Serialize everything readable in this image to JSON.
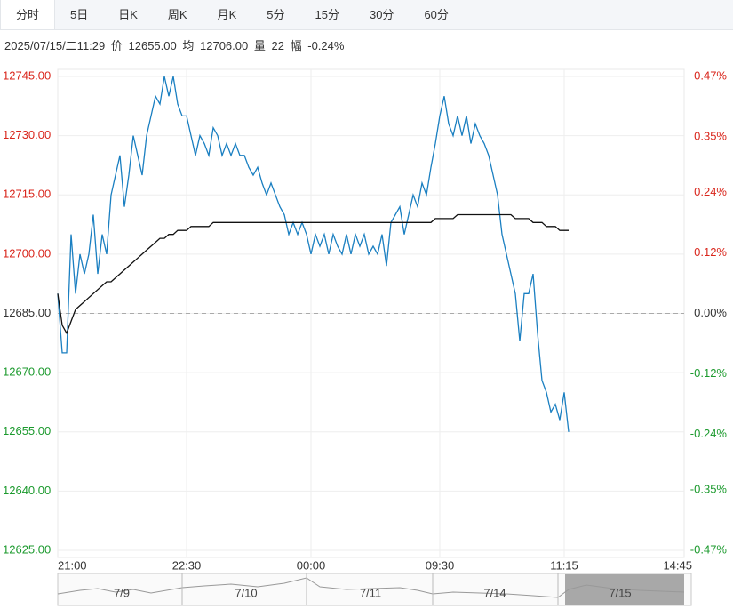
{
  "tabs": [
    "分时",
    "5日",
    "日K",
    "周K",
    "月K",
    "5分",
    "15分",
    "30分",
    "60分"
  ],
  "info": {
    "datetime": "2025/07/15/二11:29",
    "price_label": "价",
    "price": "12655.00",
    "avg_label": "均",
    "avg": "12706.00",
    "vol_label": "量",
    "vol": "22",
    "range_label": "幅",
    "range": "-0.24%"
  },
  "chart_data": {
    "type": "line",
    "xlim": [
      0,
      141
    ],
    "xticks": [
      {
        "value": 0,
        "label": "21:00"
      },
      {
        "value": 29,
        "label": "22:30"
      },
      {
        "value": 57,
        "label": "00:00"
      },
      {
        "value": 86,
        "label": "09:30"
      },
      {
        "value": 114,
        "label": "11:15"
      },
      {
        "value": 141,
        "label": "14:45"
      }
    ],
    "ylim": [
      12625,
      12745
    ],
    "yticks": [
      {
        "value": 12745,
        "label": "12745.00"
      },
      {
        "value": 12730,
        "label": "12730.00"
      },
      {
        "value": 12715,
        "label": "12715.00"
      },
      {
        "value": 12700,
        "label": "12700.00"
      },
      {
        "value": 12685,
        "label": "12685.00"
      },
      {
        "value": 12670,
        "label": "12670.00"
      },
      {
        "value": 12655,
        "label": "12655.00"
      },
      {
        "value": 12640,
        "label": "12640.00"
      },
      {
        "value": 12625,
        "label": "12625.00"
      }
    ],
    "y2lim": [
      -0.47,
      0.47
    ],
    "y2ticks": [
      {
        "value": 0.47,
        "label": "0.47%"
      },
      {
        "value": 0.35,
        "label": "0.35%"
      },
      {
        "value": 0.24,
        "label": "0.24%"
      },
      {
        "value": 0.12,
        "label": "0.12%"
      },
      {
        "value": 0,
        "label": "0.00%"
      },
      {
        "value": -0.12,
        "label": "-0.12%"
      },
      {
        "value": -0.24,
        "label": "-0.24%"
      },
      {
        "value": -0.35,
        "label": "-0.35%"
      },
      {
        "value": -0.47,
        "label": "-0.47%"
      }
    ],
    "reference": 12685,
    "grid": true,
    "series": [
      {
        "color": "#1a7fc1",
        "values": [
          12690,
          12675,
          12675,
          12705,
          12690,
          12700,
          12695,
          12700,
          12710,
          12695,
          12705,
          12700,
          12715,
          12720,
          12725,
          12712,
          12720,
          12730,
          12725,
          12720,
          12730,
          12735,
          12740,
          12738,
          12745,
          12740,
          12745,
          12738,
          12735,
          12735,
          12730,
          12725,
          12730,
          12728,
          12725,
          12732,
          12730,
          12725,
          12728,
          12725,
          12728,
          12725,
          12725,
          12722,
          12720,
          12722,
          12718,
          12715,
          12718,
          12715,
          12712,
          12710,
          12705,
          12708,
          12705,
          12708,
          12705,
          12700,
          12705,
          12702,
          12705,
          12700,
          12705,
          12702,
          12700,
          12705,
          12700,
          12705,
          12702,
          12705,
          12700,
          12702,
          12700,
          12705,
          12697,
          12708,
          12710,
          12712,
          12705,
          12710,
          12715,
          12712,
          12718,
          12715,
          12722,
          12728,
          12735,
          12740,
          12733,
          12730,
          12735,
          12730,
          12735,
          12728,
          12733,
          12730,
          12728,
          12725,
          12720,
          12715,
          12705,
          12700,
          12695,
          12690,
          12678,
          12690,
          12690,
          12695,
          12680,
          12668,
          12665,
          12660,
          12662,
          12658,
          12665,
          12655
        ]
      },
      {
        "color": "#111111",
        "values": [
          12690,
          12682,
          12680,
          12683,
          12686,
          12687,
          12688,
          12689,
          12690,
          12691,
          12692,
          12693,
          12693,
          12694,
          12695,
          12696,
          12697,
          12698,
          12699,
          12700,
          12701,
          12702,
          12703,
          12704,
          12704,
          12705,
          12705,
          12706,
          12706,
          12706,
          12707,
          12707,
          12707,
          12707,
          12707,
          12708,
          12708,
          12708,
          12708,
          12708,
          12708,
          12708,
          12708,
          12708,
          12708,
          12708,
          12708,
          12708,
          12708,
          12708,
          12708,
          12708,
          12708,
          12708,
          12708,
          12708,
          12708,
          12708,
          12708,
          12708,
          12708,
          12708,
          12708,
          12708,
          12708,
          12708,
          12708,
          12708,
          12708,
          12708,
          12708,
          12708,
          12708,
          12708,
          12708,
          12708,
          12708,
          12708,
          12708,
          12708,
          12708,
          12708,
          12708,
          12708,
          12708,
          12709,
          12709,
          12709,
          12709,
          12709,
          12710,
          12710,
          12710,
          12710,
          12710,
          12710,
          12710,
          12710,
          12710,
          12710,
          12710,
          12710,
          12710,
          12709,
          12709,
          12709,
          12709,
          12708,
          12708,
          12708,
          12707,
          12707,
          12707,
          12706,
          12706,
          12706
        ]
      }
    ],
    "navigator": [
      "7/9",
      "7/10",
      "7/11",
      "7/14",
      "7/15"
    ]
  }
}
